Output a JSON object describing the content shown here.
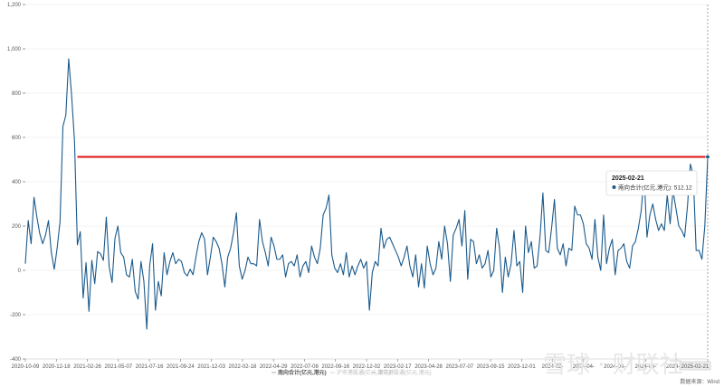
{
  "chart_data": {
    "type": "line",
    "title": "",
    "xlabel": "",
    "ylabel": "",
    "ylim": [
      -400,
      1200
    ],
    "yticks": [
      -400,
      -200,
      0,
      200,
      400,
      600,
      800,
      1000,
      1200
    ],
    "ytick_labels": [
      "-400",
      "-200",
      "0",
      "200",
      "400",
      "600",
      "800",
      "1,000",
      "1,200"
    ],
    "xticks": [
      "2020-10-09",
      "2020-12-18",
      "2021-02-26",
      "2021-05-07",
      "2021-07-16",
      "2021-09-24",
      "2021-12-03",
      "2022-02-18",
      "2022-04-29",
      "2022-07-08",
      "2022-09-16",
      "2022-12-02",
      "2023-02-17",
      "2023-04-28",
      "2023-07-07",
      "2023-09-15",
      "2023-12-01",
      "2024-02-",
      "2024-04-",
      "2024-06-",
      "2024-09-",
      "2024-11-",
      "2025-02-21"
    ],
    "x_start": "2020-10-09",
    "x_end": "2025-02-21",
    "grid": true,
    "legend_position": "bottom",
    "series": [
      {
        "name": "南向合计(亿元,港元)",
        "color": "#1a5a8c",
        "values": [
          30,
          225,
          120,
          330,
          240,
          165,
          120,
          160,
          225,
          80,
          5,
          100,
          220,
          650,
          700,
          955,
          790,
          585,
          115,
          175,
          -125,
          35,
          -185,
          45,
          -60,
          85,
          75,
          45,
          240,
          15,
          -55,
          145,
          200,
          80,
          60,
          -20,
          -30,
          50,
          -95,
          -130,
          40,
          -50,
          -265,
          20,
          120,
          -180,
          -50,
          -115,
          80,
          -20,
          40,
          80,
          30,
          50,
          40,
          -10,
          -25,
          5,
          -20,
          60,
          130,
          170,
          140,
          -20,
          60,
          150,
          130,
          100,
          30,
          -75,
          60,
          100,
          170,
          260,
          20,
          -40,
          0,
          60,
          30,
          30,
          20,
          230,
          130,
          80,
          20,
          150,
          110,
          50,
          50,
          70,
          -30,
          30,
          40,
          20,
          70,
          -30,
          20,
          40,
          -10,
          110,
          60,
          30,
          100,
          250,
          280,
          340,
          70,
          10,
          -10,
          30,
          -20,
          80,
          -30,
          20,
          -20,
          20,
          50,
          10,
          40,
          -180,
          -10,
          40,
          20,
          190,
          100,
          140,
          150,
          120,
          90,
          60,
          20,
          60,
          110,
          20,
          -30,
          70,
          -75,
          30,
          -80,
          110,
          30,
          -20,
          10,
          130,
          50,
          200,
          120,
          -50,
          160,
          190,
          230,
          110,
          270,
          -40,
          140,
          130,
          30,
          70,
          10,
          30,
          90,
          -30,
          0,
          190,
          100,
          -100,
          60,
          -30,
          30,
          180,
          20,
          40,
          -100,
          200,
          80,
          130,
          10,
          20,
          150,
          350,
          90,
          80,
          190,
          320,
          100,
          70,
          120,
          20,
          100,
          90,
          290,
          250,
          250,
          210,
          120,
          100,
          50,
          230,
          60,
          0,
          250,
          30,
          100,
          140,
          -20,
          90,
          100,
          120,
          40,
          10,
          110,
          130,
          190,
          270,
          430,
          150,
          250,
          300,
          230,
          180,
          210,
          180,
          340,
          210,
          360,
          280,
          200,
          180,
          150,
          290,
          480,
          430,
          90,
          90,
          50,
          200,
          512
        ]
      }
    ],
    "threshold_line": {
      "value": 512,
      "color": "#dd1111"
    },
    "tooltip": {
      "date": "2025-02-21",
      "series_label": "南向合计(亿元,港元)",
      "value": "512.12"
    },
    "legend": [
      {
        "label": "南向合计(亿元,港元)",
        "active": true
      },
      {
        "label": "沪市港股通(亿元,港元)",
        "active": false
      },
      {
        "label": "深市港股通(亿元,港元)",
        "active": false
      }
    ]
  },
  "source_text": "数据来源：Wind",
  "watermark": "雪球 · 财联社",
  "colors": {
    "series": "#1a5a8c",
    "threshold": "#dd1111",
    "grid": "#e8e8e8"
  }
}
